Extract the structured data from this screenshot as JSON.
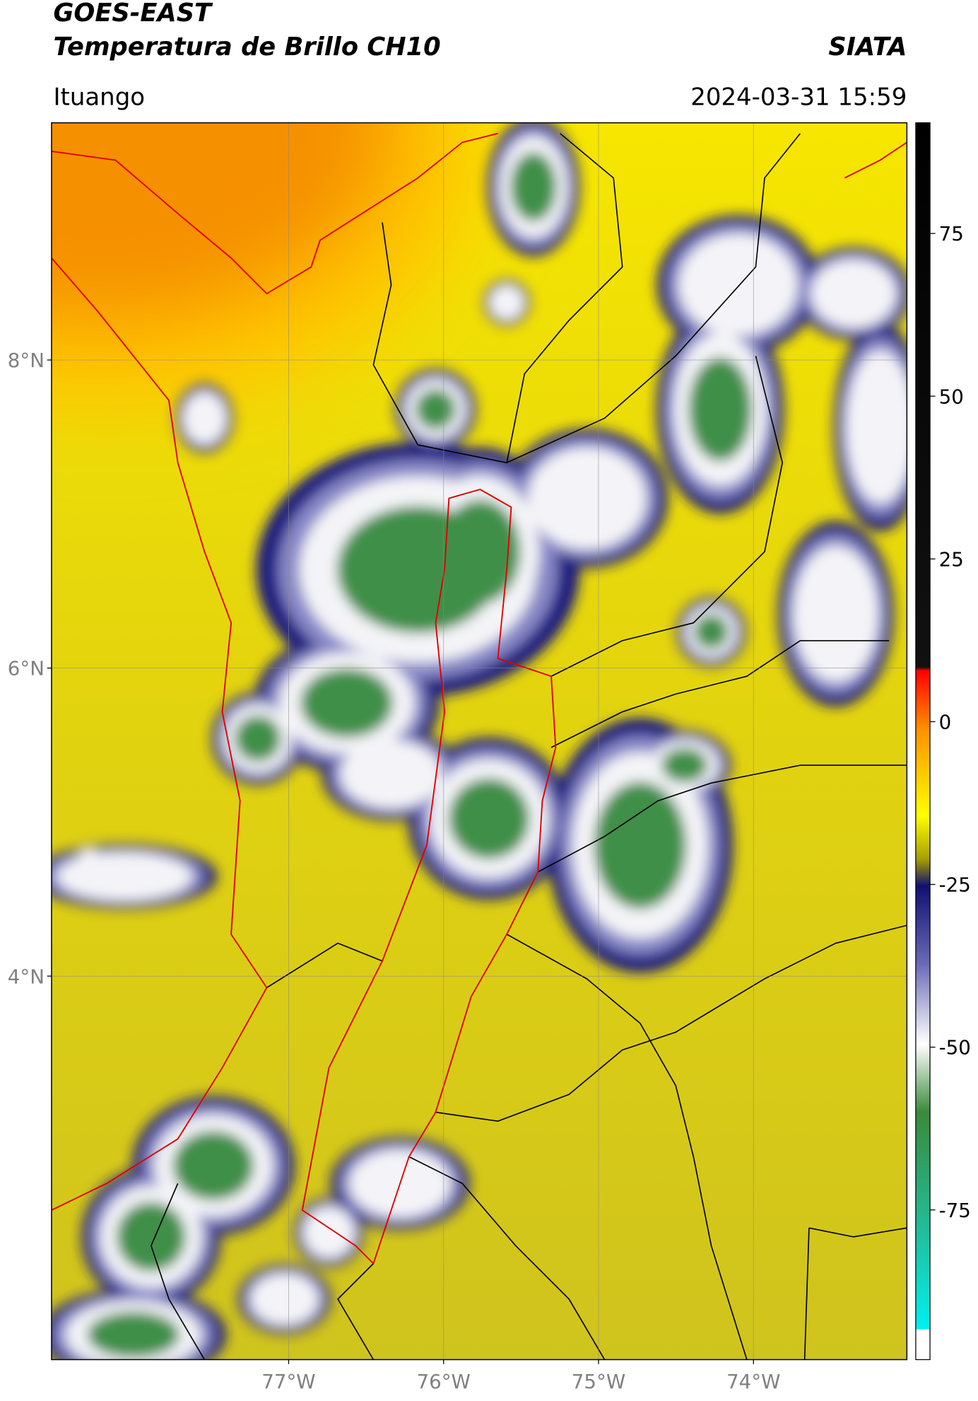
{
  "header": {
    "title_line1": "GOES-EAST",
    "title_line2": "Temperatura de Brillo CH10",
    "source": "SIATA",
    "location": "Ituango",
    "timestamp": "2024-03-31 15:59"
  },
  "map": {
    "xlim": [
      -78.53,
      -73.01
    ],
    "ylim": [
      1.51,
      9.54
    ],
    "xticks": [
      {
        "value": -77,
        "label": "77°W"
      },
      {
        "value": -76,
        "label": "76°W"
      },
      {
        "value": -75,
        "label": "75°W"
      },
      {
        "value": -74,
        "label": "74°W"
      }
    ],
    "yticks": [
      {
        "value": 8,
        "label": "8°N"
      },
      {
        "value": 6,
        "label": "6°N"
      },
      {
        "value": 4,
        "label": "4°N"
      }
    ],
    "grid": true
  },
  "colorbar": {
    "lim": [
      -98,
      92
    ],
    "ticks": [
      75,
      50,
      25,
      0,
      -25,
      -50,
      -75
    ]
  }
}
